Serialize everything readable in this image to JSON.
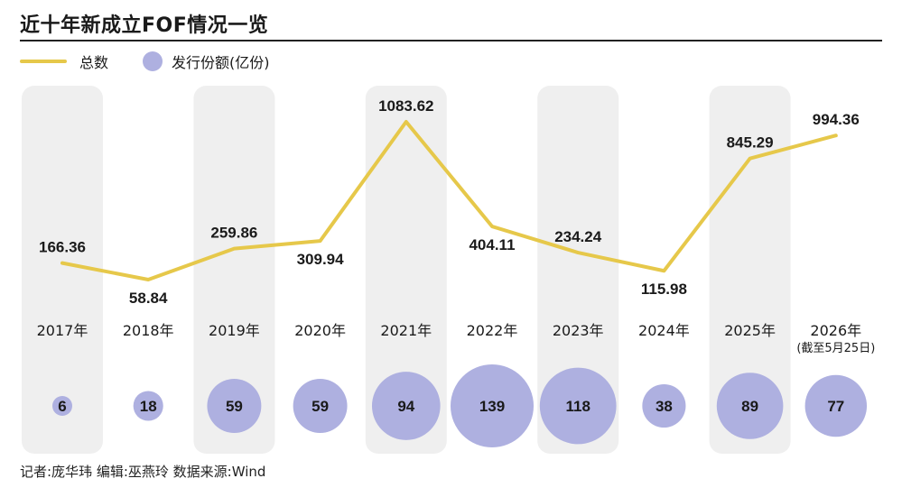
{
  "title": "近十年新成立FOF情况一览",
  "legend": {
    "line_label": "总数",
    "bubble_label": "发行份额(亿份)"
  },
  "footer": "记者:庞华玮  编辑:巫燕玲  数据来源:Wind",
  "colors": {
    "line": "#e6c84a",
    "bubble": "#aeb0e0",
    "band": "#efefef"
  },
  "chart_data": {
    "type": "line",
    "categories": [
      "2017年",
      "2018年",
      "2019年",
      "2020年",
      "2021年",
      "2022年",
      "2023年",
      "2024年",
      "2025年",
      "2026年"
    ],
    "category_note": {
      "2026年": "(截至5月25日)"
    },
    "series": [
      {
        "name": "总数",
        "type": "line",
        "values": [
          166.36,
          58.84,
          259.86,
          309.94,
          1083.62,
          404.11,
          234.24,
          115.98,
          845.29,
          994.36
        ],
        "labels": [
          "166.36",
          "58.84",
          "259.86",
          "309.94",
          "1083.62",
          "404.11",
          "234.24",
          "115.98",
          "845.29",
          "994.36"
        ]
      },
      {
        "name": "发行份额(亿份)",
        "type": "bubble",
        "values": [
          6,
          18,
          59,
          59,
          94,
          139,
          118,
          38,
          89,
          77
        ]
      }
    ],
    "shaded_categories": [
      "2017年",
      "2019年",
      "2021年",
      "2023年",
      "2025年"
    ],
    "legend_position": "top-left",
    "grid": false
  }
}
